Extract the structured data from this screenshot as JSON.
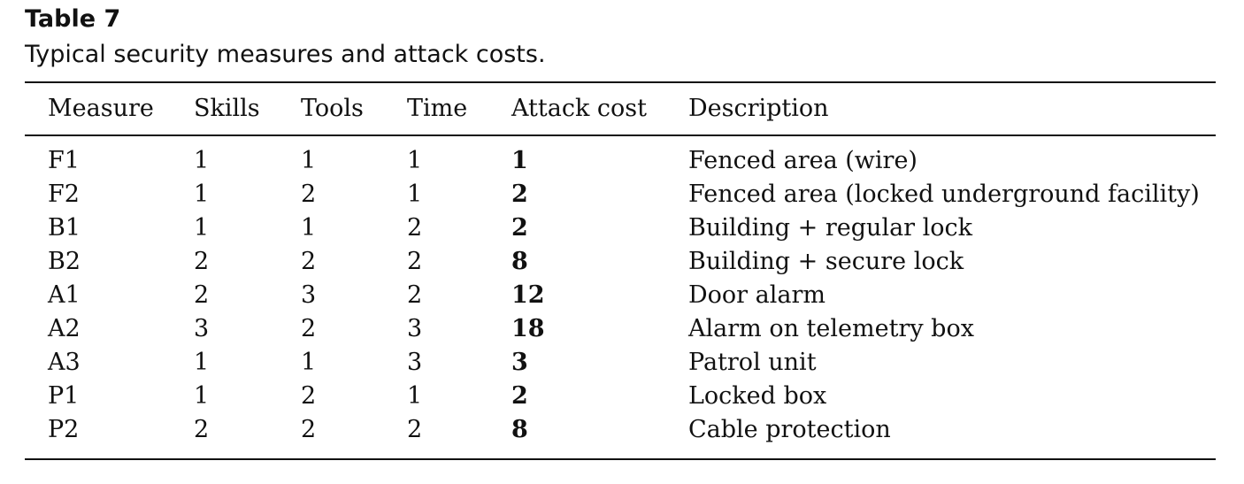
{
  "caption": {
    "label": "Table 7",
    "text": "Typical security measures and attack costs."
  },
  "table": {
    "headers": [
      "Measure",
      "Skills",
      "Tools",
      "Time",
      "Attack cost",
      "Description"
    ],
    "rows": [
      [
        "F1",
        "1",
        "1",
        "1",
        "1",
        "Fenced area (wire)"
      ],
      [
        "F2",
        "1",
        "2",
        "1",
        "2",
        "Fenced area (locked underground facility)"
      ],
      [
        "B1",
        "1",
        "1",
        "2",
        "2",
        "Building + regular lock"
      ],
      [
        "B2",
        "2",
        "2",
        "2",
        "8",
        "Building + secure lock"
      ],
      [
        "A1",
        "2",
        "3",
        "2",
        "12",
        "Door alarm"
      ],
      [
        "A2",
        "3",
        "2",
        "3",
        "18",
        "Alarm on telemetry box"
      ],
      [
        "A3",
        "1",
        "1",
        "3",
        "3",
        "Patrol unit"
      ],
      [
        "P1",
        "1",
        "2",
        "1",
        "2",
        "Locked box"
      ],
      [
        "P2",
        "2",
        "2",
        "2",
        "8",
        "Cable protection"
      ]
    ]
  }
}
